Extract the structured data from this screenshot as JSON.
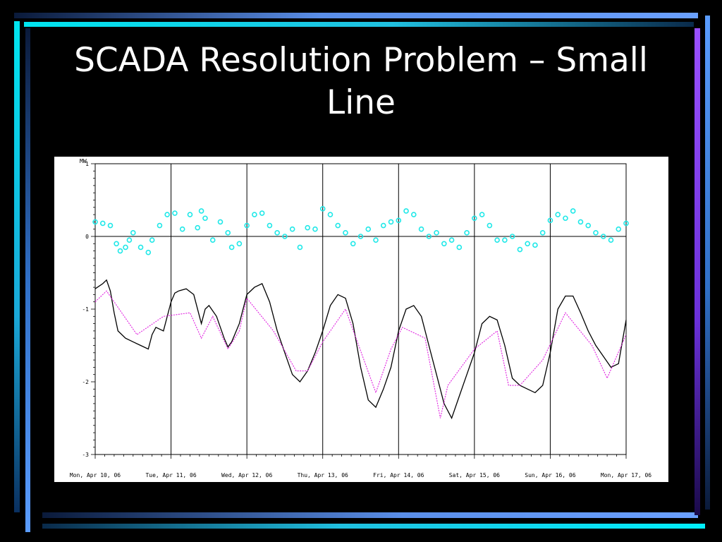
{
  "slide": {
    "title": "SCADA Resolution Problem – Small Line"
  },
  "colors": {
    "background": "#000000",
    "title": "#ffffff",
    "scada_series": "#000000",
    "comparison_series": "#e020e0",
    "scatter_series": "#20e8e8",
    "accent_cyan": "#00e5f0",
    "accent_blue": "#5a8ee8",
    "accent_purple": "#9a50ff"
  },
  "chart_data": {
    "type": "line",
    "title": "",
    "xlabel": "",
    "ylabel": "MW",
    "ylim": [
      -3,
      1
    ],
    "yticks": [
      1,
      0,
      -1,
      -2,
      -3
    ],
    "x_tick_labels": [
      "Mon, Apr 10, 06",
      "Tue, Apr 11, 06",
      "Wed, Apr 12, 06",
      "Thu, Apr 13, 06",
      "Fri, Apr 14, 06",
      "Sat, Apr 15, 06",
      "Sun, Apr 16, 06",
      "Mon, Apr 17, 06"
    ],
    "xlim_days": [
      0,
      7
    ],
    "grid": "vertical day lines",
    "legend": "none",
    "series": [
      {
        "style": "line",
        "color": "#000000",
        "x": [
          0,
          0.1,
          0.15,
          0.2,
          0.25,
          0.3,
          0.4,
          0.5,
          0.6,
          0.7,
          0.75,
          0.8,
          0.9,
          1.0,
          1.05,
          1.1,
          1.2,
          1.3,
          1.4,
          1.45,
          1.5,
          1.6,
          1.7,
          1.75,
          1.8,
          1.9,
          2.0,
          2.1,
          2.2,
          2.3,
          2.4,
          2.5,
          2.6,
          2.7,
          2.8,
          2.9,
          3.0,
          3.1,
          3.2,
          3.3,
          3.4,
          3.5,
          3.6,
          3.7,
          3.8,
          3.9,
          4.0,
          4.1,
          4.2,
          4.3,
          4.4,
          4.5,
          4.6,
          4.7,
          4.8,
          4.9,
          5.0,
          5.1,
          5.2,
          5.3,
          5.4,
          5.5,
          5.6,
          5.7,
          5.8,
          5.9,
          6.0,
          6.1,
          6.2,
          6.3,
          6.4,
          6.5,
          6.6,
          6.7,
          6.8,
          6.9,
          7.0
        ],
        "y": [
          -0.72,
          -0.65,
          -0.6,
          -0.75,
          -1.05,
          -1.3,
          -1.4,
          -1.45,
          -1.5,
          -1.55,
          -1.35,
          -1.25,
          -1.3,
          -0.9,
          -0.78,
          -0.75,
          -0.72,
          -0.8,
          -1.2,
          -1.0,
          -0.95,
          -1.1,
          -1.4,
          -1.52,
          -1.45,
          -1.2,
          -0.8,
          -0.7,
          -0.65,
          -0.9,
          -1.3,
          -1.6,
          -1.9,
          -2.0,
          -1.85,
          -1.6,
          -1.3,
          -0.95,
          -0.8,
          -0.85,
          -1.2,
          -1.8,
          -2.25,
          -2.35,
          -2.1,
          -1.8,
          -1.3,
          -1.0,
          -0.95,
          -1.1,
          -1.5,
          -1.9,
          -2.3,
          -2.5,
          -2.2,
          -1.9,
          -1.6,
          -1.2,
          -1.1,
          -1.15,
          -1.5,
          -1.95,
          -2.05,
          -2.1,
          -2.15,
          -2.05,
          -1.6,
          -1.0,
          -0.82,
          -0.82,
          -1.05,
          -1.3,
          -1.5,
          -1.65,
          -1.8,
          -1.75,
          -1.15
        ]
      },
      {
        "style": "dotted-line",
        "color": "#e020e0",
        "x": [
          0,
          0.15,
          0.55,
          0.9,
          1.25,
          1.4,
          1.55,
          1.75,
          1.9,
          2.0,
          2.35,
          2.65,
          2.8,
          3.0,
          3.3,
          3.7,
          3.9,
          4.05,
          4.35,
          4.55,
          4.65,
          5.0,
          5.3,
          5.45,
          5.6,
          5.9,
          6.2,
          6.55,
          6.75,
          7.0
        ],
        "y": [
          -0.9,
          -0.75,
          -1.35,
          -1.1,
          -1.05,
          -1.4,
          -1.1,
          -1.55,
          -1.3,
          -0.85,
          -1.3,
          -1.85,
          -1.85,
          -1.45,
          -1.0,
          -2.15,
          -1.55,
          -1.25,
          -1.4,
          -2.5,
          -2.05,
          -1.55,
          -1.3,
          -2.05,
          -2.05,
          -1.7,
          -1.05,
          -1.5,
          -1.95,
          -1.35
        ]
      },
      {
        "style": "scatter",
        "color": "#20e8e8",
        "x": [
          0,
          0.1,
          0.2,
          0.28,
          0.33,
          0.4,
          0.45,
          0.5,
          0.6,
          0.7,
          0.75,
          0.85,
          0.95,
          1.05,
          1.15,
          1.25,
          1.35,
          1.4,
          1.45,
          1.55,
          1.65,
          1.75,
          1.8,
          1.9,
          2.0,
          2.1,
          2.2,
          2.3,
          2.4,
          2.5,
          2.6,
          2.7,
          2.8,
          2.9,
          3.0,
          3.1,
          3.2,
          3.3,
          3.4,
          3.5,
          3.6,
          3.7,
          3.8,
          3.9,
          4.0,
          4.1,
          4.2,
          4.3,
          4.4,
          4.5,
          4.6,
          4.7,
          4.8,
          4.9,
          5.0,
          5.1,
          5.2,
          5.3,
          5.4,
          5.5,
          5.6,
          5.7,
          5.8,
          5.9,
          6.0,
          6.1,
          6.2,
          6.3,
          6.4,
          6.5,
          6.6,
          6.7,
          6.8,
          6.9,
          7.0
        ],
        "y": [
          0.2,
          0.18,
          0.15,
          -0.1,
          -0.2,
          -0.15,
          -0.05,
          0.05,
          -0.15,
          -0.22,
          -0.05,
          0.15,
          0.3,
          0.32,
          0.1,
          0.3,
          0.12,
          0.35,
          0.25,
          -0.05,
          0.2,
          0.05,
          -0.15,
          -0.1,
          0.15,
          0.3,
          0.32,
          0.15,
          0.05,
          0.0,
          0.1,
          -0.15,
          0.12,
          0.1,
          0.38,
          0.3,
          0.15,
          0.05,
          -0.1,
          0.0,
          0.1,
          -0.05,
          0.15,
          0.2,
          0.22,
          0.35,
          0.3,
          0.1,
          0.0,
          0.05,
          -0.1,
          -0.05,
          -0.15,
          0.05,
          0.25,
          0.3,
          0.15,
          -0.05,
          -0.05,
          0.0,
          -0.18,
          -0.1,
          -0.12,
          0.05,
          0.22,
          0.3,
          0.25,
          0.35,
          0.2,
          0.15,
          0.05,
          0.0,
          -0.05,
          0.1,
          0.18
        ]
      }
    ]
  }
}
